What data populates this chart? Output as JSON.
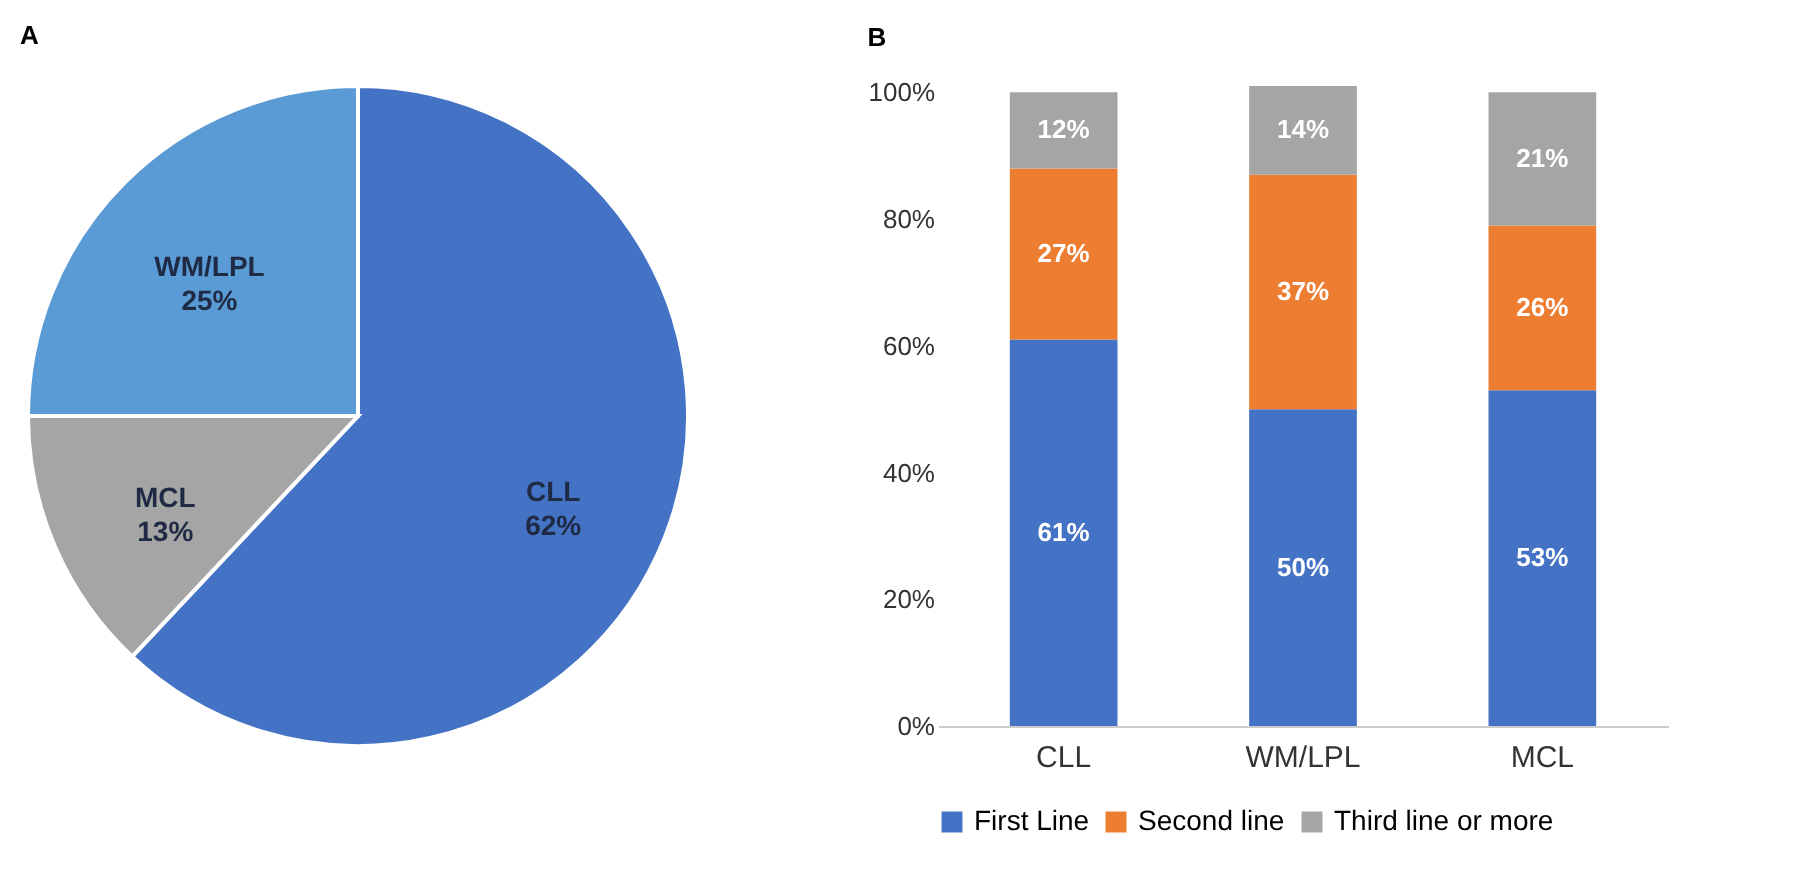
{
  "chart_data": [
    {
      "type": "pie",
      "title": "A",
      "categories": [
        "CLL",
        "MCL",
        "WM/LPL"
      ],
      "values": [
        62,
        13,
        25
      ],
      "colors": [
        "#4472c4",
        "#a5a5a5",
        "#5b9bd5"
      ],
      "value_labels": [
        "62%",
        "13%",
        "25%"
      ]
    },
    {
      "type": "bar",
      "title": "B",
      "categories": [
        "CLL",
        "WM/LPL",
        "MCL"
      ],
      "stacked": true,
      "ylim": [
        0,
        101
      ],
      "yticks": [
        {
          "value": 0,
          "label": "0%"
        },
        {
          "value": 20,
          "label": "20%"
        },
        {
          "value": 40,
          "label": "40%"
        },
        {
          "value": 60,
          "label": "60%"
        },
        {
          "value": 80,
          "label": "80%"
        },
        {
          "value": 100,
          "label": "100%"
        }
      ],
      "legend": "bottom",
      "series": [
        {
          "name": "First Line",
          "color": "#4472c4",
          "values": [
            61,
            50,
            53
          ],
          "value_labels": [
            "61%",
            "50%",
            "53%"
          ]
        },
        {
          "name": "Second line",
          "color": "#ed7d31",
          "values": [
            27,
            37,
            26
          ],
          "value_labels": [
            "27%",
            "37%",
            "26%"
          ]
        },
        {
          "name": "Third line or more",
          "color": "#a5a5a5",
          "values": [
            12,
            14,
            21
          ],
          "value_labels": [
            "12%",
            "14%",
            "21%"
          ]
        }
      ]
    }
  ]
}
